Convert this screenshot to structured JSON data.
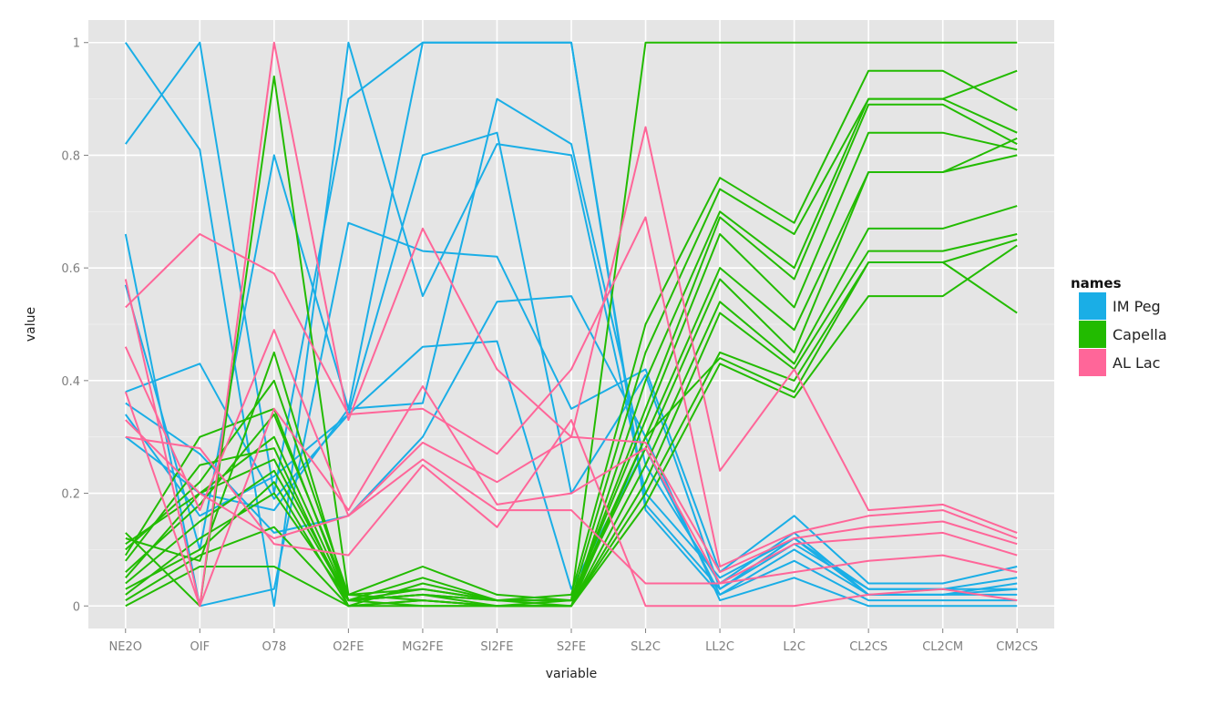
{
  "chart_data": {
    "type": "line",
    "subtype": "parallel-coordinates",
    "title": "",
    "xlabel": "variable",
    "ylabel": "value",
    "ylim": [
      -0.04,
      1.04
    ],
    "yticks": [
      0,
      0.2,
      0.4,
      0.6,
      0.8,
      1
    ],
    "ytick_labels": [
      "0",
      "0.2",
      "0.4",
      "0.6",
      "0.8",
      "1"
    ],
    "categories": [
      "NE2O",
      "OIF",
      "O78",
      "O2FE",
      "MG2FE",
      "SI2FE",
      "S2FE",
      "SL2C",
      "LL2C",
      "L2C",
      "CL2CS",
      "CL2CM",
      "CM2CS"
    ],
    "legend": {
      "title": "names",
      "position": "right",
      "entries": [
        {
          "name": "IM Peg",
          "color": "#1aaee6"
        },
        {
          "name": "Capella",
          "color": "#22bb00"
        },
        {
          "name": "AL Lac",
          "color": "#ff6699"
        }
      ]
    },
    "series": [
      {
        "group": "IM Peg",
        "values": [
          1.0,
          0.81,
          0.0,
          1.0,
          0.55,
          0.82,
          0.8,
          0.2,
          0.05,
          0.12,
          0.03,
          0.03,
          0.05
        ]
      },
      {
        "group": "IM Peg",
        "values": [
          0.82,
          1.0,
          0.2,
          0.9,
          1.0,
          1.0,
          1.0,
          0.17,
          0.02,
          0.1,
          0.02,
          0.02,
          0.04
        ]
      },
      {
        "group": "IM Peg",
        "values": [
          0.66,
          0.0,
          0.03,
          0.68,
          0.63,
          0.62,
          0.35,
          0.42,
          0.06,
          0.16,
          0.04,
          0.04,
          0.07
        ]
      },
      {
        "group": "IM Peg",
        "values": [
          0.57,
          0.1,
          0.8,
          0.35,
          0.36,
          0.9,
          0.82,
          0.25,
          0.04,
          0.13,
          0.02,
          0.02,
          0.02
        ]
      },
      {
        "group": "IM Peg",
        "values": [
          0.38,
          0.43,
          0.19,
          0.34,
          0.46,
          0.47,
          0.03,
          0.28,
          0.02,
          0.08,
          0.01,
          0.01,
          0.01
        ]
      },
      {
        "group": "IM Peg",
        "values": [
          0.36,
          0.27,
          0.13,
          0.16,
          0.3,
          0.54,
          0.55,
          0.3,
          0.01,
          0.05,
          0.0,
          0.0,
          0.0
        ]
      },
      {
        "group": "IM Peg",
        "values": [
          0.34,
          0.16,
          0.23,
          0.34,
          0.8,
          0.84,
          0.2,
          0.41,
          0.03,
          0.11,
          0.03,
          0.03,
          0.03
        ]
      },
      {
        "group": "IM Peg",
        "values": [
          0.3,
          0.2,
          0.17,
          0.35,
          1.0,
          1.0,
          1.0,
          0.18,
          0.03,
          0.12,
          0.02,
          0.02,
          0.03
        ]
      },
      {
        "group": "Capella",
        "values": [
          0.13,
          0.0,
          0.94,
          0.02,
          0.03,
          0.01,
          0.01,
          1.0,
          1.0,
          1.0,
          1.0,
          1.0,
          1.0
        ]
      },
      {
        "group": "Capella",
        "values": [
          0.12,
          0.08,
          0.45,
          0.01,
          0.05,
          0.01,
          0.02,
          0.5,
          0.76,
          0.68,
          0.95,
          0.95,
          0.88
        ]
      },
      {
        "group": "Capella",
        "values": [
          0.1,
          0.22,
          0.4,
          0.02,
          0.07,
          0.02,
          0.01,
          0.45,
          0.74,
          0.66,
          0.9,
          0.9,
          0.84
        ]
      },
      {
        "group": "Capella",
        "values": [
          0.09,
          0.3,
          0.35,
          0.01,
          0.02,
          0.0,
          0.0,
          0.4,
          0.7,
          0.6,
          0.9,
          0.9,
          0.95
        ]
      },
      {
        "group": "Capella",
        "values": [
          0.08,
          0.25,
          0.28,
          0.0,
          0.04,
          0.01,
          0.01,
          0.35,
          0.69,
          0.58,
          0.89,
          0.89,
          0.82
        ]
      },
      {
        "group": "Capella",
        "values": [
          0.06,
          0.18,
          0.34,
          0.02,
          0.01,
          0.0,
          0.01,
          0.33,
          0.66,
          0.53,
          0.84,
          0.84,
          0.81
        ]
      },
      {
        "group": "Capella",
        "values": [
          0.05,
          0.2,
          0.26,
          0.01,
          0.03,
          0.01,
          0.0,
          0.3,
          0.6,
          0.49,
          0.77,
          0.77,
          0.83
        ]
      },
      {
        "group": "Capella",
        "values": [
          0.04,
          0.15,
          0.24,
          0.01,
          0.02,
          0.01,
          0.01,
          0.28,
          0.58,
          0.45,
          0.77,
          0.77,
          0.8
        ]
      },
      {
        "group": "Capella",
        "values": [
          0.03,
          0.1,
          0.22,
          0.0,
          0.01,
          0.0,
          0.0,
          0.25,
          0.54,
          0.43,
          0.67,
          0.67,
          0.71
        ]
      },
      {
        "group": "Capella",
        "values": [
          0.02,
          0.12,
          0.2,
          0.01,
          0.0,
          0.0,
          0.0,
          0.22,
          0.52,
          0.42,
          0.63,
          0.63,
          0.66
        ]
      },
      {
        "group": "Capella",
        "values": [
          0.01,
          0.09,
          0.14,
          0.0,
          0.01,
          0.0,
          0.0,
          0.2,
          0.45,
          0.4,
          0.61,
          0.61,
          0.65
        ]
      },
      {
        "group": "Capella",
        "values": [
          0.0,
          0.07,
          0.07,
          0.0,
          0.0,
          0.0,
          0.0,
          0.18,
          0.43,
          0.37,
          0.55,
          0.55,
          0.64
        ]
      },
      {
        "group": "Capella",
        "values": [
          0.11,
          0.2,
          0.3,
          0.01,
          0.02,
          0.01,
          0.01,
          0.3,
          0.44,
          0.38,
          0.61,
          0.61,
          0.52
        ]
      },
      {
        "group": "AL Lac",
        "values": [
          0.58,
          0.0,
          1.0,
          0.33,
          0.67,
          0.42,
          0.3,
          0.85,
          0.24,
          0.42,
          0.17,
          0.18,
          0.13
        ]
      },
      {
        "group": "AL Lac",
        "values": [
          0.53,
          0.66,
          0.59,
          0.34,
          0.35,
          0.27,
          0.42,
          0.69,
          0.07,
          0.13,
          0.16,
          0.17,
          0.12
        ]
      },
      {
        "group": "AL Lac",
        "values": [
          0.46,
          0.17,
          0.49,
          0.16,
          0.29,
          0.22,
          0.3,
          0.29,
          0.06,
          0.12,
          0.14,
          0.15,
          0.11
        ]
      },
      {
        "group": "AL Lac",
        "values": [
          0.38,
          0.0,
          0.35,
          0.17,
          0.39,
          0.18,
          0.2,
          0.28,
          0.04,
          0.11,
          0.12,
          0.13,
          0.09
        ]
      },
      {
        "group": "AL Lac",
        "values": [
          0.33,
          0.2,
          0.12,
          0.16,
          0.26,
          0.17,
          0.17,
          0.04,
          0.04,
          0.06,
          0.08,
          0.09,
          0.06
        ]
      },
      {
        "group": "AL Lac",
        "values": [
          0.3,
          0.28,
          0.11,
          0.09,
          0.25,
          0.14,
          0.33,
          0.0,
          0.0,
          0.0,
          0.02,
          0.03,
          0.01
        ]
      }
    ]
  }
}
